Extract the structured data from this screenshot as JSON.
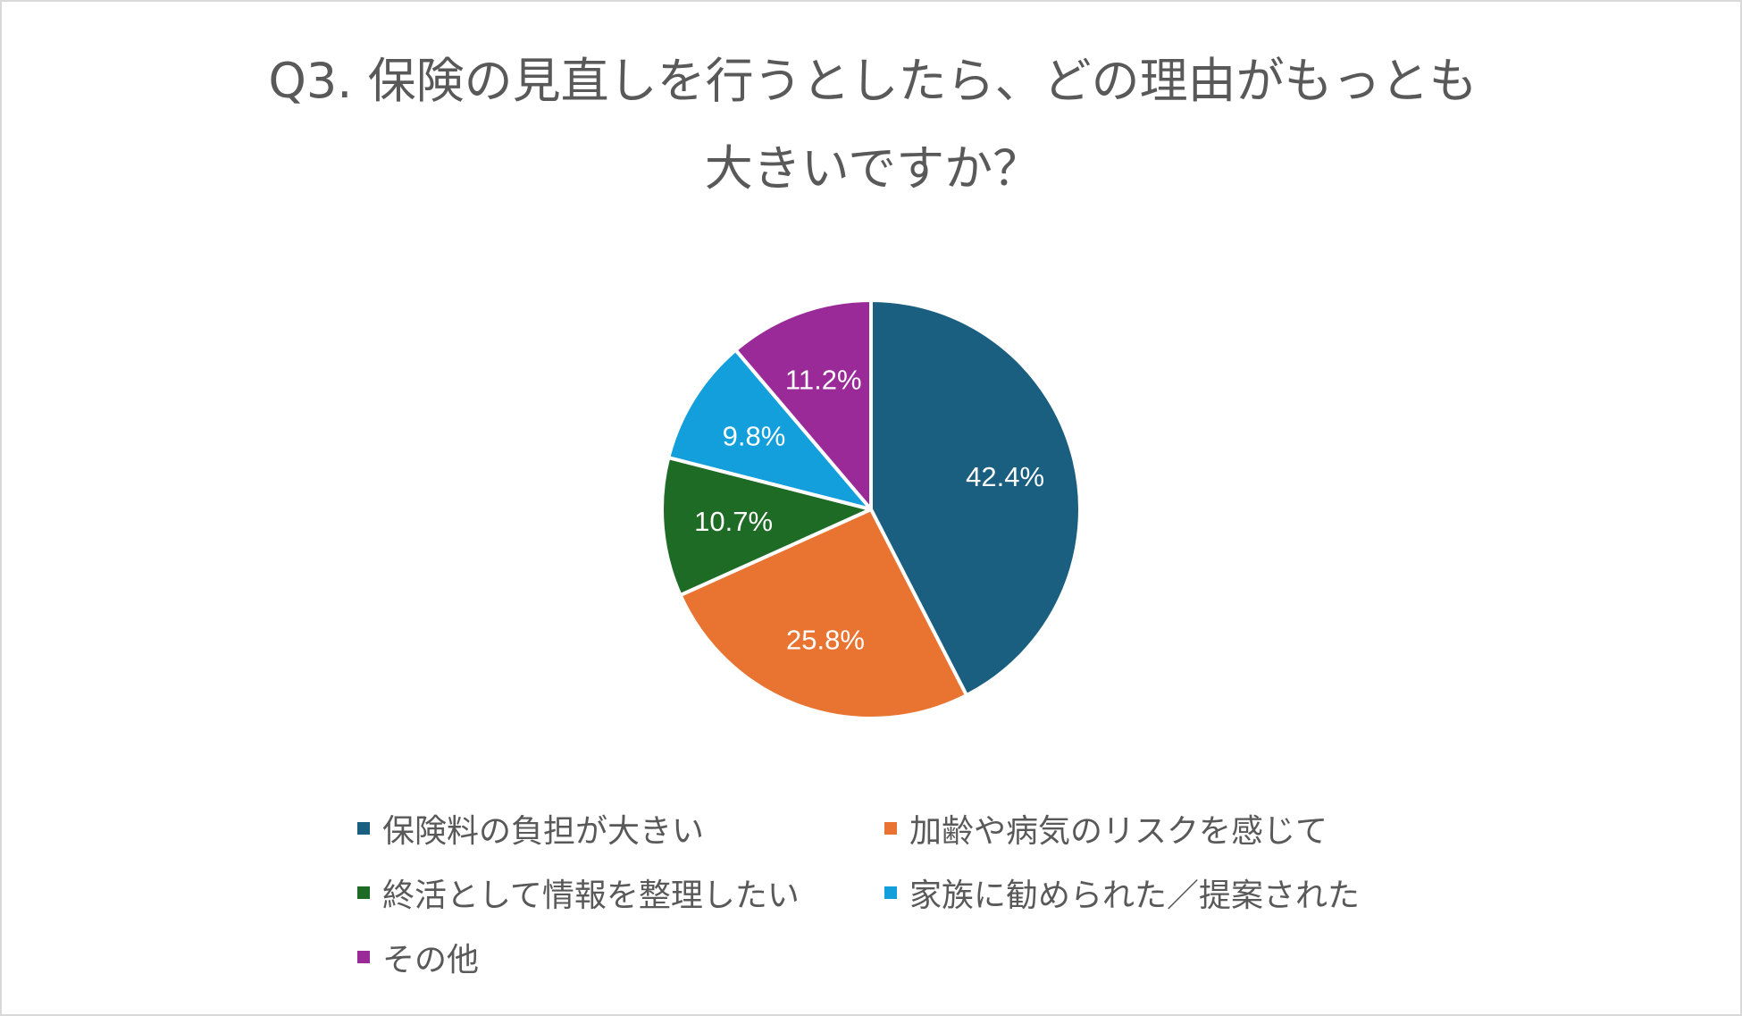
{
  "chart_data": {
    "type": "pie",
    "title_lines": [
      "Q3. 保険の見直しを行うとしたら、どの理由がもっとも",
      "大きいですか？"
    ],
    "slices": [
      {
        "label": "保険料の負担が大きい",
        "value": 42.4,
        "display": "42.4%",
        "color": "#1b5f80"
      },
      {
        "label": "加齢や病気のリスクを感じて",
        "value": 25.8,
        "display": "25.8%",
        "color": "#e97432"
      },
      {
        "label": "終活として情報を整理したい",
        "value": 10.7,
        "display": "10.7%",
        "color": "#1e6b25"
      },
      {
        "label": "家族に勧められた／提案された",
        "value": 9.8,
        "display": "9.8%",
        "color": "#139fdb"
      },
      {
        "label": "その他",
        "value": 11.2,
        "display": "11.2%",
        "color": "#9b2a99"
      }
    ],
    "legend_position": "bottom",
    "start_angle": "12 o'clock",
    "direction": "clockwise"
  }
}
